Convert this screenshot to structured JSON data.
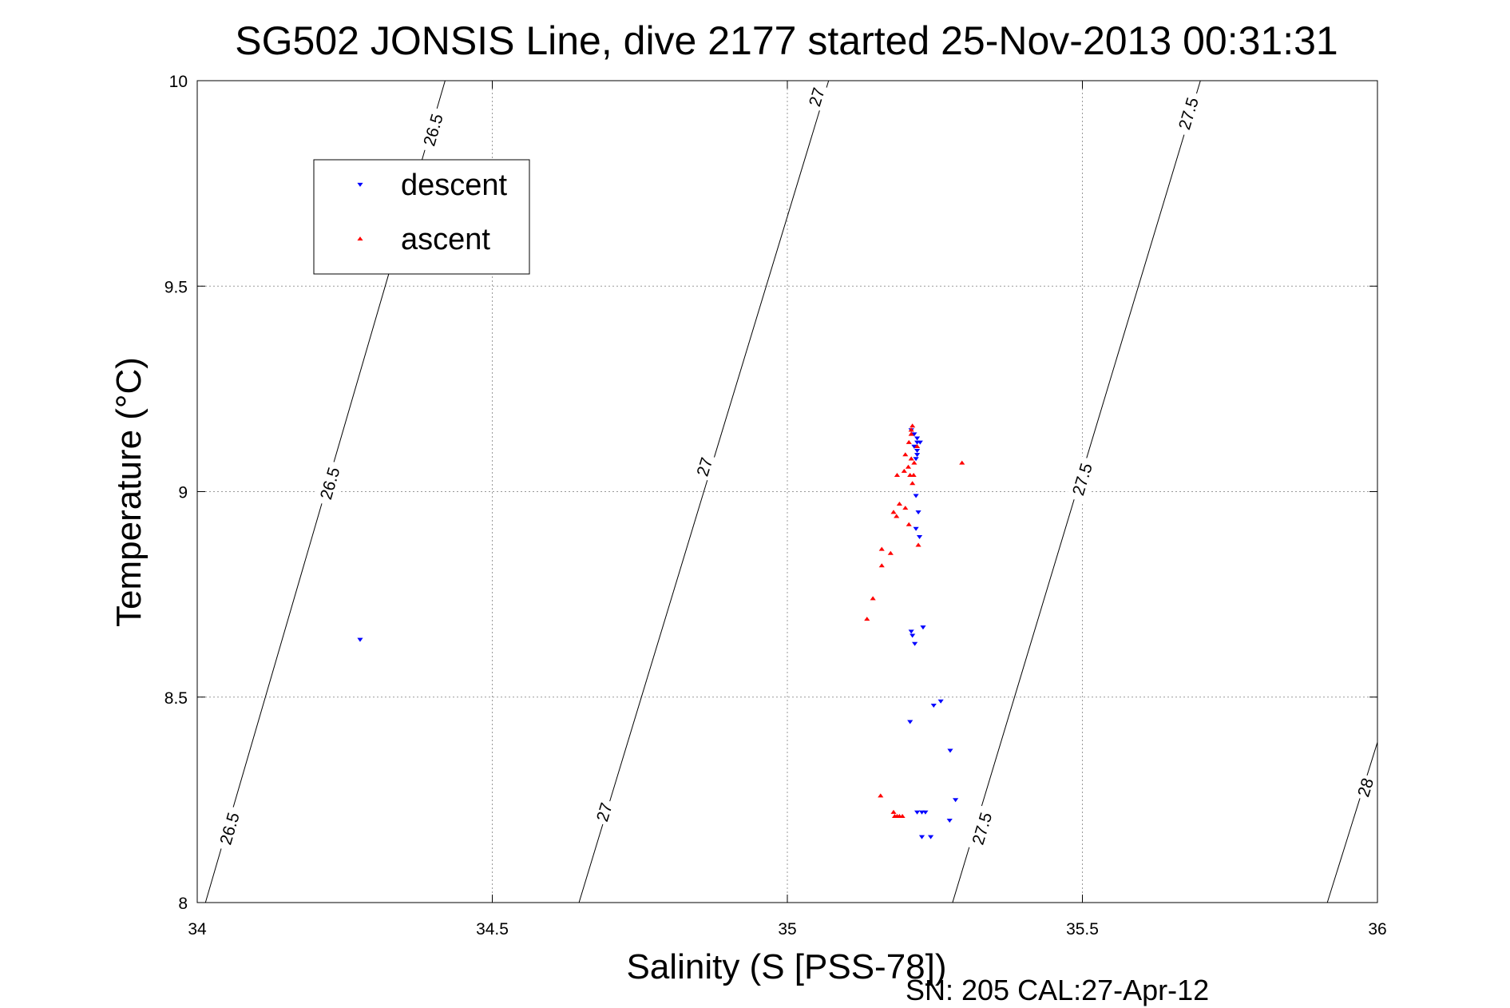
{
  "chart_data": {
    "type": "scatter",
    "title": "SG502 JONSIS Line, dive 2177 started 25-Nov-2013 00:31:31",
    "xlabel": "Salinity (S [PSS-78])",
    "ylabel": "Temperature (°C)",
    "xlim": [
      34,
      36
    ],
    "ylim": [
      8,
      10
    ],
    "xticks": [
      "34",
      "34.5",
      "35",
      "35.5",
      "36"
    ],
    "yticks": [
      "8",
      "8.5",
      "9",
      "9.5",
      "10"
    ],
    "grid": true,
    "legend_placement": "top-left",
    "footer": "SN: 205  CAL:27-Apr-12",
    "density_contours": [
      {
        "sigma": "26.5",
        "points": [
          [
            34.014,
            8.0
          ],
          [
            34.42,
            10.0
          ]
        ]
      },
      {
        "sigma": "27",
        "points": [
          [
            34.647,
            8.0
          ],
          [
            35.07,
            10.0
          ]
        ]
      },
      {
        "sigma": "27.5",
        "points": [
          [
            35.28,
            8.0
          ],
          [
            35.7,
            10.0
          ]
        ]
      },
      {
        "sigma": "28",
        "points": [
          [
            35.915,
            8.0
          ],
          [
            36.0,
            8.39
          ]
        ]
      }
    ],
    "contour_labels": [
      {
        "text": "26.5",
        "x": 34.055,
        "y": 8.18
      },
      {
        "text": "26.5",
        "x": 34.225,
        "y": 9.02
      },
      {
        "text": "26.5",
        "x": 34.4,
        "y": 9.88
      },
      {
        "text": "27",
        "x": 34.69,
        "y": 8.22
      },
      {
        "text": "27",
        "x": 34.86,
        "y": 9.06
      },
      {
        "text": "27",
        "x": 35.05,
        "y": 9.96
      },
      {
        "text": "27.5",
        "x": 35.33,
        "y": 8.18
      },
      {
        "text": "27.5",
        "x": 35.5,
        "y": 9.03
      },
      {
        "text": "27.5",
        "x": 35.68,
        "y": 9.92
      },
      {
        "text": "28",
        "x": 35.98,
        "y": 8.28
      }
    ],
    "series": [
      {
        "name": "descent",
        "color": "#0000ff",
        "marker": "triangle-down",
        "points": [
          [
            34.276,
            8.64
          ],
          [
            35.21,
            9.15
          ],
          [
            35.215,
            9.14
          ],
          [
            35.22,
            9.13
          ],
          [
            35.22,
            9.12
          ],
          [
            35.225,
            9.12
          ],
          [
            35.215,
            9.11
          ],
          [
            35.22,
            9.1
          ],
          [
            35.22,
            9.09
          ],
          [
            35.218,
            9.08
          ],
          [
            35.218,
            8.99
          ],
          [
            35.222,
            8.95
          ],
          [
            35.218,
            8.91
          ],
          [
            35.224,
            8.89
          ],
          [
            35.21,
            8.66
          ],
          [
            35.23,
            8.67
          ],
          [
            35.212,
            8.65
          ],
          [
            35.216,
            8.63
          ],
          [
            35.248,
            8.48
          ],
          [
            35.26,
            8.49
          ],
          [
            35.208,
            8.44
          ],
          [
            35.276,
            8.37
          ],
          [
            35.285,
            8.25
          ],
          [
            35.22,
            8.22
          ],
          [
            35.228,
            8.22
          ],
          [
            35.234,
            8.22
          ],
          [
            35.275,
            8.2
          ],
          [
            35.228,
            8.16
          ],
          [
            35.243,
            8.16
          ]
        ]
      },
      {
        "name": "ascent",
        "color": "#ff0000",
        "marker": "triangle-up",
        "points": [
          [
            35.212,
            9.16
          ],
          [
            35.21,
            9.15
          ],
          [
            35.21,
            9.14
          ],
          [
            35.206,
            9.12
          ],
          [
            35.22,
            9.11
          ],
          [
            35.2,
            9.09
          ],
          [
            35.21,
            9.08
          ],
          [
            35.215,
            9.07
          ],
          [
            35.296,
            9.07
          ],
          [
            35.205,
            9.06
          ],
          [
            35.198,
            9.05
          ],
          [
            35.186,
            9.04
          ],
          [
            35.208,
            9.04
          ],
          [
            35.214,
            9.04
          ],
          [
            35.212,
            9.02
          ],
          [
            35.19,
            8.97
          ],
          [
            35.2,
            8.96
          ],
          [
            35.18,
            8.95
          ],
          [
            35.185,
            8.94
          ],
          [
            35.206,
            8.92
          ],
          [
            35.222,
            8.87
          ],
          [
            35.16,
            8.86
          ],
          [
            35.175,
            8.85
          ],
          [
            35.16,
            8.82
          ],
          [
            35.145,
            8.74
          ],
          [
            35.135,
            8.69
          ],
          [
            35.158,
            8.26
          ],
          [
            35.18,
            8.22
          ],
          [
            35.182,
            8.21
          ],
          [
            35.186,
            8.21
          ],
          [
            35.19,
            8.21
          ],
          [
            35.195,
            8.21
          ]
        ]
      }
    ]
  }
}
